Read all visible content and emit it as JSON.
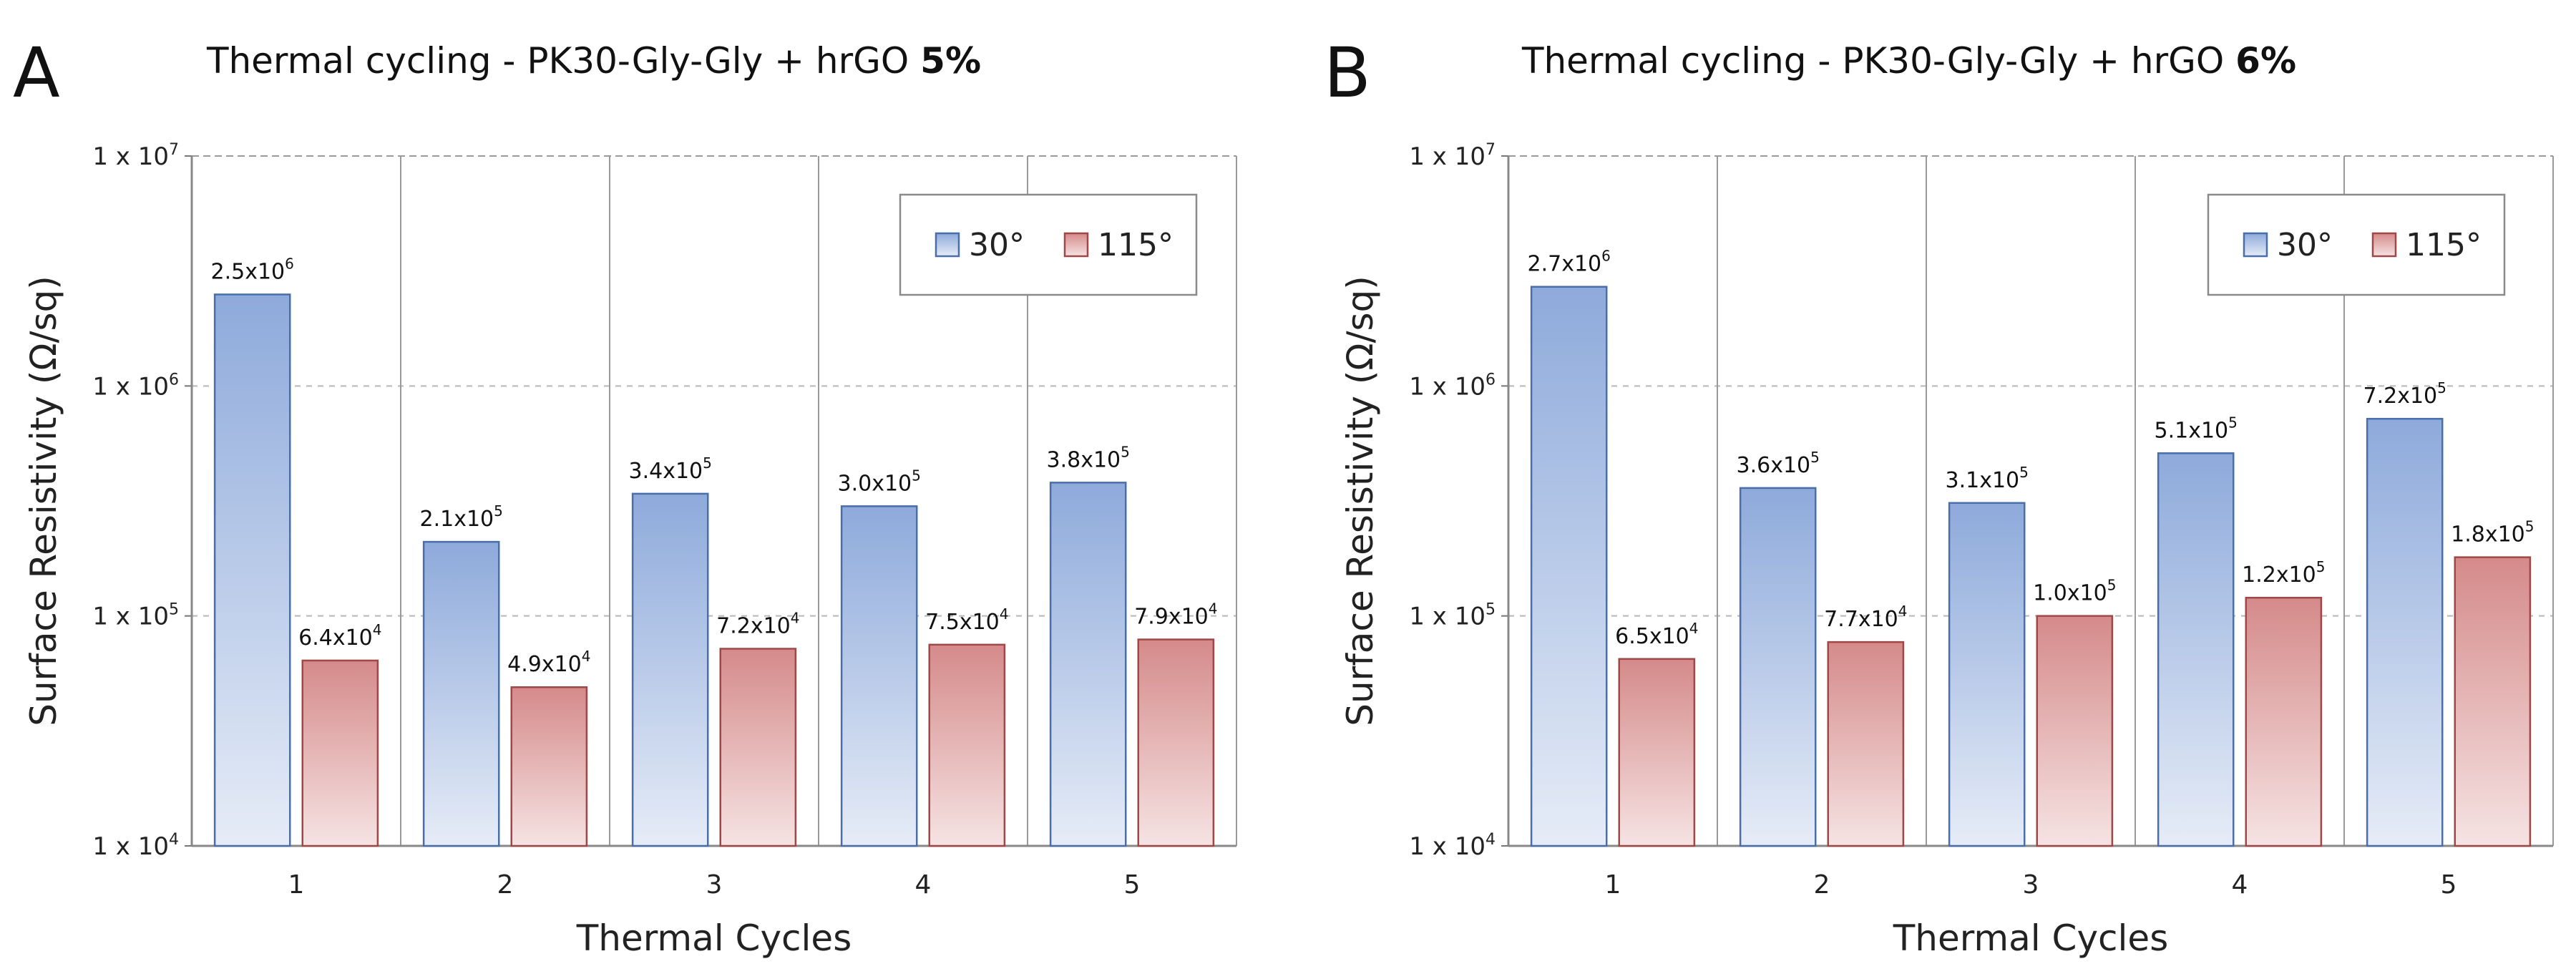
{
  "chart_data": [
    {
      "type": "bar",
      "panel_letter": "A",
      "title": "Thermal cycling - PK30-Gly-Gly + hrGO ",
      "title_bold": "5%",
      "xlabel": "Thermal Cycles",
      "ylabel": "Surface Resistivity (Ω/sq)",
      "y_scale": "log",
      "ylim": [
        10000,
        10000000
      ],
      "y_ticks": [
        {
          "value": 10000,
          "base": "1 x 10",
          "exp": "4"
        },
        {
          "value": 100000,
          "base": "1 x 10",
          "exp": "5"
        },
        {
          "value": 1000000,
          "base": "1 x 10",
          "exp": "6"
        },
        {
          "value": 10000000,
          "base": "1 x 10",
          "exp": "7"
        }
      ],
      "categories": [
        "1",
        "2",
        "3",
        "4",
        "5"
      ],
      "legend_position": "top-right",
      "series": [
        {
          "name": "30°",
          "color_top": "#8eaadb",
          "color_bottom": "#e6ecf7",
          "stroke": "#4a6ea9",
          "values": [
            2500000,
            210000,
            340000,
            300000,
            380000
          ],
          "labels": [
            {
              "mantissa": "2.5x10",
              "exp": "6"
            },
            {
              "mantissa": "2.1x10",
              "exp": "5"
            },
            {
              "mantissa": "3.4x10",
              "exp": "5"
            },
            {
              "mantissa": "3.0x10",
              "exp": "5"
            },
            {
              "mantissa": "3.8x10",
              "exp": "5"
            }
          ]
        },
        {
          "name": "115°",
          "color_top": "#d58a8a",
          "color_bottom": "#f6e3e3",
          "stroke": "#a04848",
          "values": [
            64000,
            49000,
            72000,
            75000,
            79000
          ],
          "labels": [
            {
              "mantissa": "6.4x10",
              "exp": "4"
            },
            {
              "mantissa": "4.9x10",
              "exp": "4"
            },
            {
              "mantissa": "7.2x10",
              "exp": "4"
            },
            {
              "mantissa": "7.5x10",
              "exp": "4"
            },
            {
              "mantissa": "7.9x10",
              "exp": "4"
            }
          ]
        }
      ]
    },
    {
      "type": "bar",
      "panel_letter": "B",
      "title": "Thermal cycling - PK30-Gly-Gly + hrGO ",
      "title_bold": "6%",
      "xlabel": "Thermal Cycles",
      "ylabel": "Surface Resistivity (Ω/sq)",
      "y_scale": "log",
      "ylim": [
        10000,
        10000000
      ],
      "y_ticks": [
        {
          "value": 10000,
          "base": "1 x 10",
          "exp": "4"
        },
        {
          "value": 100000,
          "base": "1 x 10",
          "exp": "5"
        },
        {
          "value": 1000000,
          "base": "1 x 10",
          "exp": "6"
        },
        {
          "value": 10000000,
          "base": "1 x 10",
          "exp": "7"
        }
      ],
      "categories": [
        "1",
        "2",
        "3",
        "4",
        "5"
      ],
      "legend_position": "top-right",
      "series": [
        {
          "name": "30°",
          "color_top": "#8eaadb",
          "color_bottom": "#e6ecf7",
          "stroke": "#4a6ea9",
          "values": [
            2700000,
            360000,
            310000,
            510000,
            720000
          ],
          "labels": [
            {
              "mantissa": "2.7x10",
              "exp": "6"
            },
            {
              "mantissa": "3.6x10",
              "exp": "5"
            },
            {
              "mantissa": "3.1x10",
              "exp": "5"
            },
            {
              "mantissa": "5.1x10",
              "exp": "5"
            },
            {
              "mantissa": "7.2x10",
              "exp": "5"
            }
          ]
        },
        {
          "name": "115°",
          "color_top": "#d58a8a",
          "color_bottom": "#f6e3e3",
          "stroke": "#a04848",
          "values": [
            65000,
            77000,
            100000,
            120000,
            180000
          ],
          "labels": [
            {
              "mantissa": "6.5x10",
              "exp": "4"
            },
            {
              "mantissa": "7.7x10",
              "exp": "4"
            },
            {
              "mantissa": "1.0x10",
              "exp": "5"
            },
            {
              "mantissa": "1.2x10",
              "exp": "5"
            },
            {
              "mantissa": "1.8x10",
              "exp": "5"
            }
          ]
        }
      ]
    }
  ]
}
